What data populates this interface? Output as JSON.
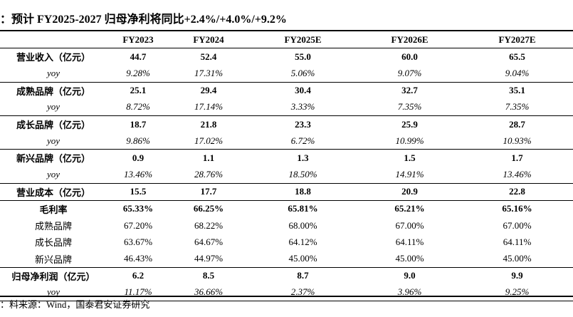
{
  "title": "：预计 FY2025-2027 归母净利将同比+2.4%/+4.0%/+9.2%",
  "columns": [
    "FY2023",
    "FY2024",
    "FY2025E",
    "FY2026E",
    "FY2027E"
  ],
  "rows": [
    {
      "label": "营业收入（亿元）",
      "kind": "main",
      "values": [
        "44.7",
        "52.4",
        "55.0",
        "60.0",
        "65.5"
      ]
    },
    {
      "label": "yoy",
      "kind": "yoy",
      "values": [
        "9.28%",
        "17.31%",
        "5.06%",
        "9.07%",
        "9.04%"
      ]
    },
    {
      "label": "成熟品牌（亿元）",
      "kind": "main",
      "values": [
        "25.1",
        "29.4",
        "30.4",
        "32.7",
        "35.1"
      ]
    },
    {
      "label": "yoy",
      "kind": "yoy",
      "values": [
        "8.72%",
        "17.14%",
        "3.33%",
        "7.35%",
        "7.35%"
      ]
    },
    {
      "label": "成长品牌（亿元）",
      "kind": "main",
      "values": [
        "18.7",
        "21.8",
        "23.3",
        "25.9",
        "28.7"
      ]
    },
    {
      "label": "yoy",
      "kind": "yoy",
      "values": [
        "9.86%",
        "17.02%",
        "6.72%",
        "10.99%",
        "10.93%"
      ]
    },
    {
      "label": "新兴品牌（亿元）",
      "kind": "main",
      "values": [
        "0.9",
        "1.1",
        "1.3",
        "1.5",
        "1.7"
      ]
    },
    {
      "label": "yoy",
      "kind": "yoy",
      "values": [
        "13.46%",
        "28.76%",
        "18.50%",
        "14.91%",
        "13.46%"
      ]
    },
    {
      "label": "营业成本（亿元）",
      "kind": "main",
      "values": [
        "15.5",
        "17.7",
        "18.8",
        "20.9",
        "22.8"
      ]
    },
    {
      "label": "毛利率",
      "kind": "main",
      "values": [
        "65.33%",
        "66.25%",
        "65.81%",
        "65.21%",
        "65.16%"
      ]
    },
    {
      "label": "成熟品牌",
      "kind": "sub",
      "values": [
        "67.20%",
        "68.22%",
        "68.00%",
        "67.00%",
        "67.00%"
      ]
    },
    {
      "label": "成长品牌",
      "kind": "sub",
      "values": [
        "63.67%",
        "64.67%",
        "64.12%",
        "64.11%",
        "64.11%"
      ]
    },
    {
      "label": "新兴品牌",
      "kind": "sub",
      "values": [
        "46.43%",
        "44.97%",
        "45.00%",
        "45.00%",
        "45.00%"
      ]
    },
    {
      "label": "归母净利润（亿元）",
      "kind": "main",
      "values": [
        "6.2",
        "8.5",
        "8.7",
        "9.0",
        "9.9"
      ]
    },
    {
      "label": "yoy",
      "kind": "yoy",
      "values": [
        "11.17%",
        "36.66%",
        "2.37%",
        "3.96%",
        "9.25%"
      ]
    }
  ],
  "separator_after_rows": [
    1,
    3,
    5,
    7,
    8,
    12,
    14
  ],
  "source": "：料来源：Wind，国泰君安证券研究"
}
